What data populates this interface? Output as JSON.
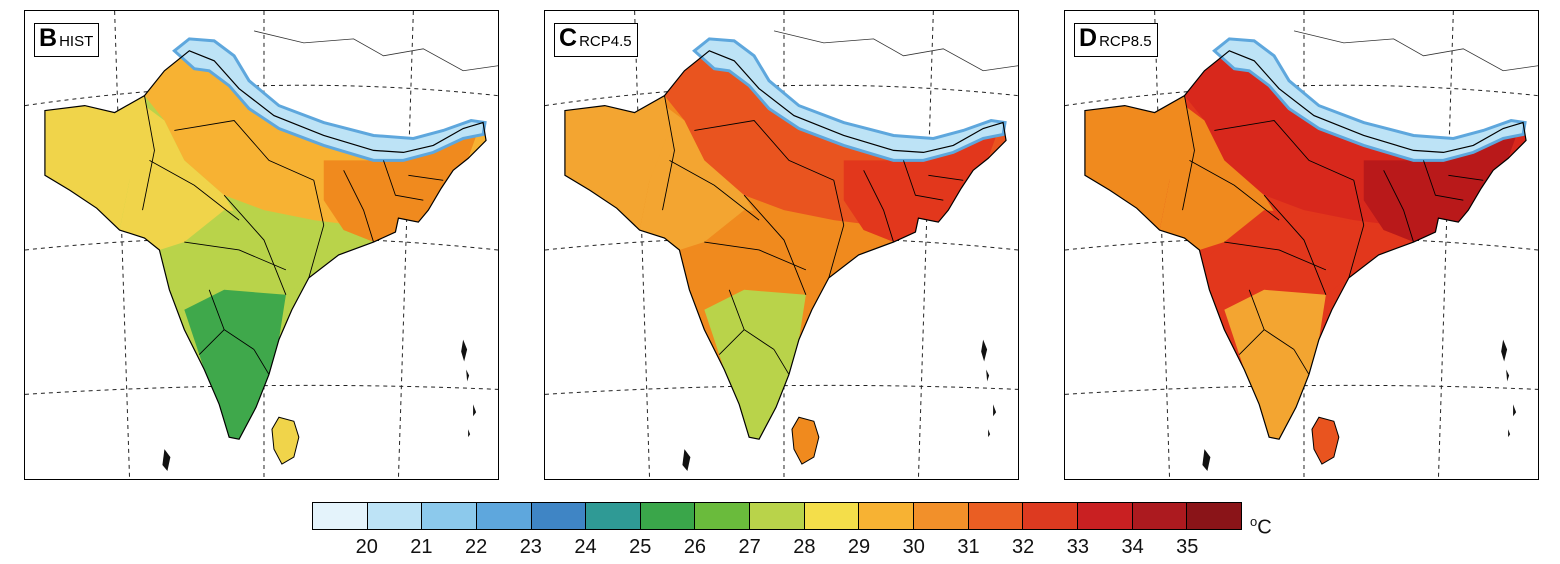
{
  "panels": [
    {
      "id": "B",
      "letter": "B",
      "scenario": "HIST",
      "regional_fill": {
        "north": "#f7b233",
        "northwest": "#f0d44a",
        "northeast": "#f08a1e",
        "central": "#b9d34a",
        "south": "#3fa84b",
        "srilanka": "#f0d44a"
      }
    },
    {
      "id": "C",
      "letter": "C",
      "scenario": "RCP4.5",
      "regional_fill": {
        "north": "#e9541f",
        "northwest": "#f3a531",
        "northeast": "#e2371c",
        "central": "#f08a1e",
        "south": "#b9d34a",
        "srilanka": "#f08a1e"
      }
    },
    {
      "id": "D",
      "letter": "D",
      "scenario": "RCP8.5",
      "regional_fill": {
        "north": "#d8281c",
        "northwest": "#f08a1e",
        "northeast": "#b9191a",
        "central": "#e2371c",
        "south": "#f3a531",
        "srilanka": "#e9541f"
      }
    }
  ],
  "colorbar": {
    "unit_base": "o",
    "unit_letter": "C",
    "ticks": [
      "20",
      "21",
      "22",
      "23",
      "24",
      "25",
      "26",
      "27",
      "28",
      "29",
      "30",
      "31",
      "32",
      "33",
      "34",
      "35"
    ],
    "colors": [
      "#e4f3fb",
      "#bde3f6",
      "#8cc9ec",
      "#5ea7dd",
      "#3f85c5",
      "#2f9a95",
      "#3aa64a",
      "#6abb3c",
      "#b9d34a",
      "#f4de4a",
      "#f7b233",
      "#f2902a",
      "#ea5e23",
      "#dd3a20",
      "#c92022",
      "#ac1a1f",
      "#8a1418"
    ]
  }
}
